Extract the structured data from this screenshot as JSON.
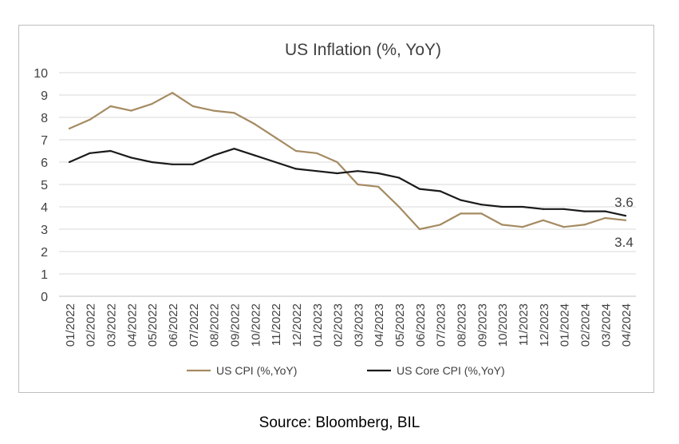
{
  "chart_data": {
    "type": "line",
    "title": "US Inflation (%, YoY)",
    "xlabel": "",
    "ylabel": "",
    "ylim": [
      0,
      10
    ],
    "yticks": [
      "0",
      "1",
      "2",
      "3",
      "4",
      "5",
      "6",
      "7",
      "8",
      "9",
      "10"
    ],
    "grid": true,
    "legend": "bottom",
    "categories": [
      "01/2022",
      "02/2022",
      "03/2022",
      "04/2022",
      "05/2022",
      "06/2022",
      "07/2022",
      "08/2022",
      "09/2022",
      "10/2022",
      "11/2022",
      "12/2022",
      "01/2023",
      "02/2023",
      "03/2023",
      "04/2023",
      "05/2023",
      "06/2023",
      "07/2023",
      "08/2023",
      "09/2023",
      "10/2023",
      "11/2023",
      "12/2023",
      "01/2024",
      "02/2024",
      "03/2024",
      "04/2024"
    ],
    "series": [
      {
        "name": "US CPI (%,YoY)",
        "color": "#a58b62",
        "values": [
          7.5,
          7.9,
          8.5,
          8.3,
          8.6,
          9.1,
          8.5,
          8.3,
          8.2,
          7.7,
          7.1,
          6.5,
          6.4,
          6.0,
          5.0,
          4.9,
          4.0,
          3.0,
          3.2,
          3.7,
          3.7,
          3.2,
          3.1,
          3.4,
          3.1,
          3.2,
          3.5,
          3.4
        ],
        "end_label": "3.4"
      },
      {
        "name": "US Core CPI (%,YoY)",
        "color": "#1a1a1a",
        "values": [
          6.0,
          6.4,
          6.5,
          6.2,
          6.0,
          5.9,
          5.9,
          6.3,
          6.6,
          6.3,
          6.0,
          5.7,
          5.6,
          5.5,
          5.6,
          5.5,
          5.3,
          4.8,
          4.7,
          4.3,
          4.1,
          4.0,
          4.0,
          3.9,
          3.9,
          3.8,
          3.8,
          3.6
        ],
        "end_label": "3.6"
      }
    ]
  },
  "source": "Source: Bloomberg, BIL"
}
